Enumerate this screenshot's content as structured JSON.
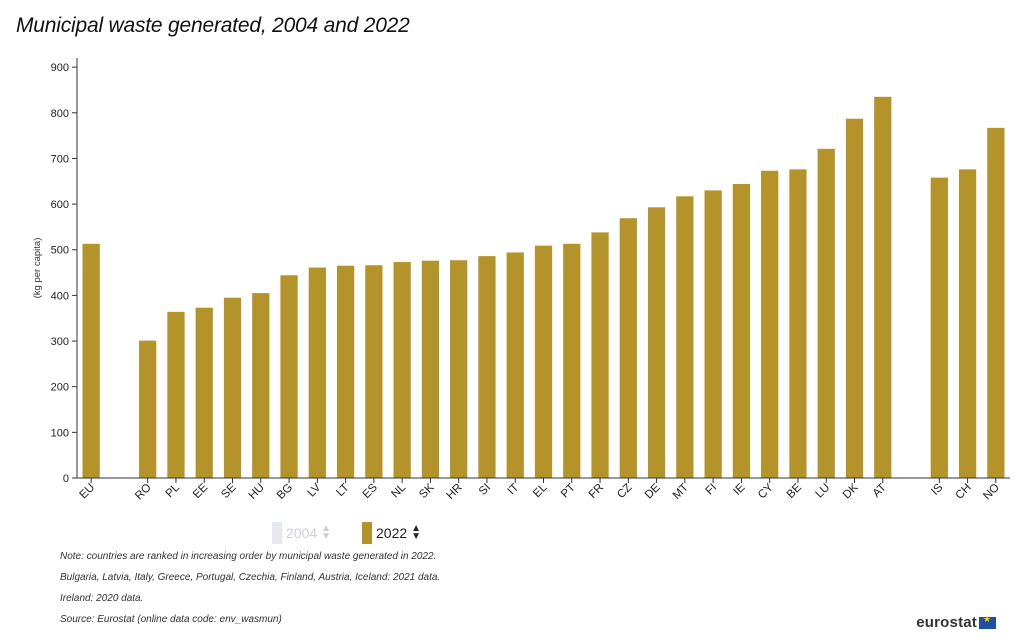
{
  "title": "Municipal waste generated, 2004 and 2022",
  "chart_data": {
    "type": "bar",
    "ylabel": "(kg per capita)",
    "xlabel": "",
    "ylim": [
      0,
      920
    ],
    "yticks": [
      0,
      100,
      200,
      300,
      400,
      500,
      600,
      700,
      800,
      900
    ],
    "categories": [
      "EU",
      "",
      "RO",
      "PL",
      "EE",
      "SE",
      "HU",
      "BG",
      "LV",
      "LT",
      "ES",
      "NL",
      "SK",
      "HR",
      "SI",
      "IT",
      "EL",
      "PT",
      "FR",
      "CZ",
      "DE",
      "MT",
      "FI",
      "IE",
      "CY",
      "BE",
      "LU",
      "DK",
      "AT",
      "",
      "IS",
      "CH",
      "NO"
    ],
    "series": [
      {
        "name": "2022",
        "color": "#b5932b",
        "values": [
          513,
          null,
          301,
          364,
          373,
          395,
          405,
          444,
          461,
          465,
          466,
          473,
          476,
          477,
          486,
          494,
          509,
          513,
          538,
          569,
          593,
          617,
          630,
          644,
          673,
          676,
          721,
          787,
          835,
          null,
          658,
          676,
          767
        ]
      }
    ],
    "legend_placement": "bottom-center",
    "grid": false
  },
  "legend": {
    "items": [
      {
        "label": "2004",
        "color": "#e6e8f0",
        "active": false
      },
      {
        "label": "2022",
        "color": "#b5932b",
        "active": true
      }
    ]
  },
  "notes": [
    "Note: countries are ranked in increasing order by municipal waste generated in 2022.",
    "Bulgaria, Latvia, Italy, Greece, Portugal, Czechia, Finland, Austria, Iceland: 2021 data.",
    "Ireland: 2020 data.",
    "Source: Eurostat (online data code: env_wasmun)"
  ],
  "logo": {
    "text": "eurostat"
  }
}
